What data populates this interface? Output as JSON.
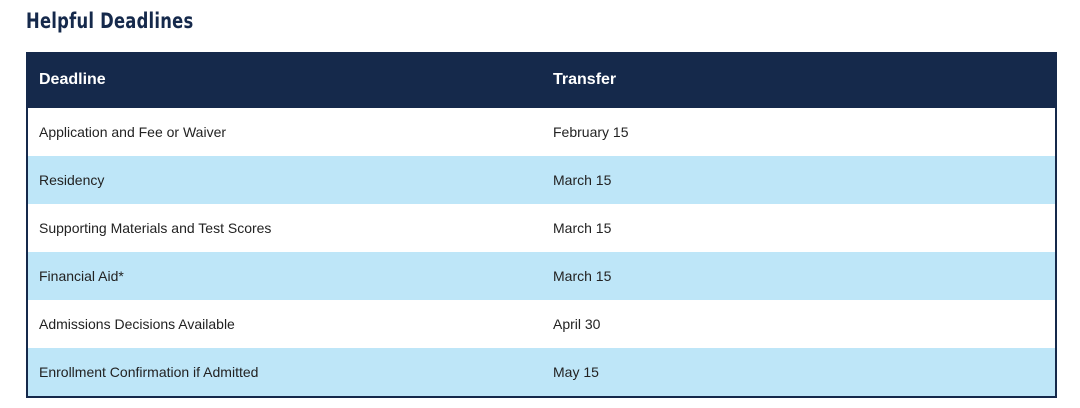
{
  "title": "Helpful Deadlines",
  "colors": {
    "header": "#15294b",
    "stripe": "#bee6f8"
  },
  "table": {
    "headers": [
      "Deadline",
      "Transfer"
    ],
    "rows": [
      [
        "Application and Fee or Waiver",
        "February 15"
      ],
      [
        "Residency",
        "March 15"
      ],
      [
        "Supporting Materials and Test Scores",
        "March 15"
      ],
      [
        "Financial Aid*",
        "March 15"
      ],
      [
        "Admissions Decisions Available",
        "April 30"
      ],
      [
        "Enrollment Confirmation if Admitted",
        "May 15"
      ]
    ]
  }
}
